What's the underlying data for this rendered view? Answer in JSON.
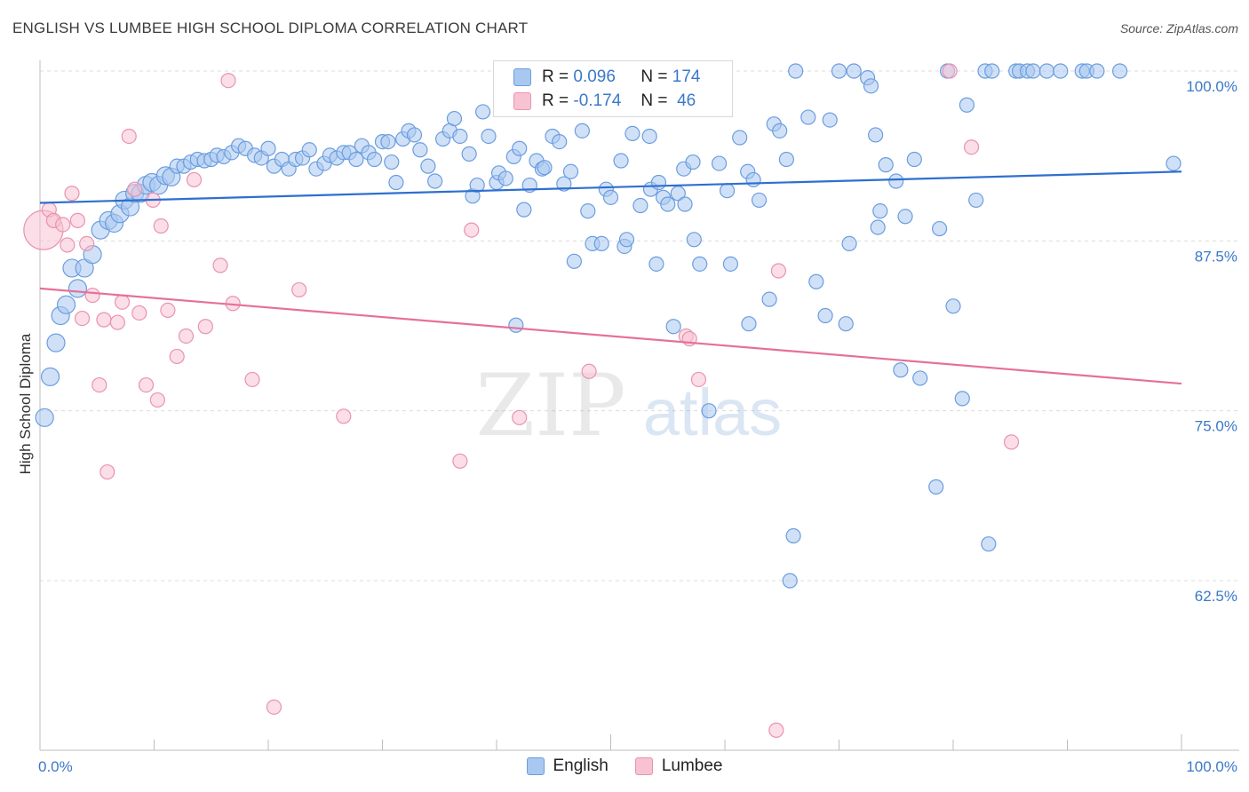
{
  "header": {
    "title": "ENGLISH VS LUMBEE HIGH SCHOOL DIPLOMA CORRELATION CHART",
    "source": "Source: ZipAtlas.com"
  },
  "legend": {
    "english": {
      "r_label": "R =",
      "r_value": "0.096",
      "n_label": "N =",
      "n_value": "174"
    },
    "lumbee": {
      "r_label": "R =",
      "r_value": "-0.174",
      "n_label": "N =",
      "n_value": "46"
    }
  },
  "bottom_legend": {
    "english": "English",
    "lumbee": "Lumbee"
  },
  "watermark": {
    "zip": "ZIP",
    "atlas": "atlas"
  },
  "colors": {
    "english_fill": "#a9c8f0",
    "english_stroke": "#6b9ddf",
    "english_line": "#2e6fcf",
    "lumbee_fill": "#f7c3d3",
    "lumbee_stroke": "#e993ad",
    "lumbee_line": "#e5709a",
    "tick_label": "#3b78c8",
    "grid": "#dcdcdc"
  },
  "chart_data": {
    "type": "scatter",
    "xlabel": "",
    "ylabel": "High School Diploma",
    "xlim": [
      0,
      100
    ],
    "ylim": [
      50,
      100
    ],
    "x_tick_labels": [
      "0.0%",
      "100.0%"
    ],
    "y_ticks": [
      100,
      87.5,
      75,
      62.5
    ],
    "y_tick_labels": [
      "100.0%",
      "87.5%",
      "75.0%",
      "62.5%"
    ],
    "grid": "horizontal dashed",
    "legend_position": "top-center",
    "series": [
      {
        "name": "English",
        "r": 0.096,
        "n": 174,
        "trend": {
          "x": [
            0,
            100
          ],
          "y": [
            90.3,
            92.6
          ]
        },
        "points": [
          [
            0.4,
            74.5
          ],
          [
            0.9,
            77.5
          ],
          [
            1.4,
            80.0
          ],
          [
            1.8,
            82.0
          ],
          [
            2.3,
            82.8
          ],
          [
            2.8,
            85.5
          ],
          [
            3.3,
            84.0
          ],
          [
            3.9,
            85.5
          ],
          [
            4.6,
            86.5
          ],
          [
            5.3,
            88.3
          ],
          [
            6.0,
            89.0
          ],
          [
            6.5,
            88.8
          ],
          [
            7.0,
            89.5
          ],
          [
            7.4,
            90.5
          ],
          [
            7.9,
            90.0
          ],
          [
            8.3,
            91.0
          ],
          [
            8.8,
            91.0
          ],
          [
            9.3,
            91.6
          ],
          [
            9.8,
            91.8
          ],
          [
            10.4,
            91.6
          ],
          [
            11.0,
            92.3
          ],
          [
            11.5,
            92.2
          ],
          [
            12.0,
            93.0
          ],
          [
            12.6,
            93.0
          ],
          [
            13.2,
            93.3
          ],
          [
            13.8,
            93.5
          ],
          [
            14.4,
            93.4
          ],
          [
            15.0,
            93.5
          ],
          [
            15.5,
            93.8
          ],
          [
            16.1,
            93.7
          ],
          [
            16.8,
            94.0
          ],
          [
            17.4,
            94.5
          ],
          [
            18.0,
            94.3
          ],
          [
            18.8,
            93.8
          ],
          [
            19.4,
            93.6
          ],
          [
            20.0,
            94.3
          ],
          [
            20.5,
            93.0
          ],
          [
            21.2,
            93.5
          ],
          [
            21.8,
            92.8
          ],
          [
            22.4,
            93.5
          ],
          [
            23.0,
            93.6
          ],
          [
            23.6,
            94.2
          ],
          [
            24.2,
            92.8
          ],
          [
            24.9,
            93.2
          ],
          [
            25.4,
            93.8
          ],
          [
            26.0,
            93.6
          ],
          [
            26.6,
            94.0
          ],
          [
            27.1,
            94.0
          ],
          [
            27.7,
            93.5
          ],
          [
            28.2,
            94.5
          ],
          [
            28.8,
            94.0
          ],
          [
            29.3,
            93.5
          ],
          [
            30.0,
            94.8
          ],
          [
            30.5,
            94.8
          ],
          [
            30.8,
            93.3
          ],
          [
            31.2,
            91.8
          ],
          [
            31.8,
            95.0
          ],
          [
            32.3,
            95.6
          ],
          [
            32.8,
            95.3
          ],
          [
            33.3,
            94.2
          ],
          [
            34.0,
            93.0
          ],
          [
            34.6,
            91.9
          ],
          [
            35.3,
            95.0
          ],
          [
            35.9,
            95.6
          ],
          [
            36.3,
            96.5
          ],
          [
            36.8,
            95.2
          ],
          [
            37.6,
            93.9
          ],
          [
            37.9,
            90.8
          ],
          [
            38.3,
            91.6
          ],
          [
            38.8,
            97.0
          ],
          [
            39.3,
            95.2
          ],
          [
            40.0,
            91.8
          ],
          [
            40.2,
            92.5
          ],
          [
            40.8,
            92.1
          ],
          [
            41.5,
            93.7
          ],
          [
            42.0,
            94.3
          ],
          [
            41.7,
            81.3
          ],
          [
            42.4,
            89.8
          ],
          [
            42.9,
            91.6
          ],
          [
            43.5,
            93.4
          ],
          [
            44.0,
            92.8
          ],
          [
            44.2,
            92.9
          ],
          [
            44.9,
            95.2
          ],
          [
            45.5,
            94.8
          ],
          [
            45.9,
            91.7
          ],
          [
            46.5,
            92.6
          ],
          [
            46.8,
            86.0
          ],
          [
            47.5,
            95.6
          ],
          [
            48.0,
            89.7
          ],
          [
            48.4,
            87.3
          ],
          [
            49.2,
            87.3
          ],
          [
            49.6,
            91.3
          ],
          [
            50.0,
            90.7
          ],
          [
            50.9,
            93.4
          ],
          [
            51.2,
            87.1
          ],
          [
            51.4,
            87.6
          ],
          [
            51.9,
            95.4
          ],
          [
            52.6,
            90.1
          ],
          [
            53.4,
            95.2
          ],
          [
            53.5,
            91.3
          ],
          [
            54.2,
            91.8
          ],
          [
            54.6,
            90.7
          ],
          [
            54.0,
            85.8
          ],
          [
            55.0,
            90.2
          ],
          [
            55.5,
            81.2
          ],
          [
            55.9,
            91.0
          ],
          [
            56.4,
            92.8
          ],
          [
            56.5,
            90.2
          ],
          [
            57.2,
            93.3
          ],
          [
            57.3,
            87.6
          ],
          [
            57.8,
            85.8
          ],
          [
            58.6,
            75.0
          ],
          [
            59.5,
            93.2
          ],
          [
            60.2,
            91.2
          ],
          [
            60.5,
            85.8
          ],
          [
            61.3,
            95.1
          ],
          [
            62.0,
            92.6
          ],
          [
            62.5,
            92.0
          ],
          [
            62.1,
            81.4
          ],
          [
            63.0,
            90.5
          ],
          [
            63.9,
            83.2
          ],
          [
            64.3,
            96.1
          ],
          [
            64.8,
            95.6
          ],
          [
            65.4,
            93.5
          ],
          [
            66.2,
            100.0
          ],
          [
            66.0,
            65.8
          ],
          [
            65.7,
            62.5
          ],
          [
            67.3,
            96.6
          ],
          [
            68.0,
            84.5
          ],
          [
            68.8,
            82.0
          ],
          [
            69.2,
            96.4
          ],
          [
            70.0,
            100.0
          ],
          [
            70.6,
            81.4
          ],
          [
            70.9,
            87.3
          ],
          [
            71.3,
            100.0
          ],
          [
            72.5,
            99.5
          ],
          [
            72.8,
            98.9
          ],
          [
            73.2,
            95.3
          ],
          [
            73.6,
            89.7
          ],
          [
            73.4,
            88.5
          ],
          [
            74.1,
            93.1
          ],
          [
            75.0,
            91.9
          ],
          [
            75.4,
            78.0
          ],
          [
            75.8,
            89.3
          ],
          [
            76.6,
            93.5
          ],
          [
            77.1,
            77.4
          ],
          [
            78.5,
            69.4
          ],
          [
            78.8,
            88.4
          ],
          [
            79.5,
            100.0
          ],
          [
            80.0,
            82.7
          ],
          [
            80.8,
            75.9
          ],
          [
            81.2,
            97.5
          ],
          [
            82.0,
            90.5
          ],
          [
            82.8,
            100.0
          ],
          [
            83.1,
            65.2
          ],
          [
            83.4,
            100.0
          ],
          [
            85.5,
            100.0
          ],
          [
            85.8,
            100.0
          ],
          [
            86.5,
            100.0
          ],
          [
            87.0,
            100.0
          ],
          [
            88.2,
            100.0
          ],
          [
            89.4,
            100.0
          ],
          [
            91.3,
            100.0
          ],
          [
            91.7,
            100.0
          ],
          [
            92.6,
            100.0
          ],
          [
            94.6,
            100.0
          ],
          [
            99.3,
            93.2
          ]
        ]
      },
      {
        "name": "Lumbee",
        "r": -0.174,
        "n": 46,
        "trend": {
          "x": [
            0,
            100
          ],
          "y": [
            84.0,
            77.0
          ]
        },
        "points": [
          [
            0.3,
            88.3
          ],
          [
            0.8,
            89.8
          ],
          [
            1.2,
            89.0
          ],
          [
            2.0,
            88.7
          ],
          [
            2.4,
            87.2
          ],
          [
            2.8,
            91.0
          ],
          [
            3.3,
            89.0
          ],
          [
            3.7,
            81.8
          ],
          [
            4.1,
            87.3
          ],
          [
            4.6,
            83.5
          ],
          [
            5.2,
            76.9
          ],
          [
            5.6,
            81.7
          ],
          [
            5.9,
            70.5
          ],
          [
            6.8,
            81.5
          ],
          [
            7.2,
            83.0
          ],
          [
            7.8,
            95.2
          ],
          [
            8.3,
            91.3
          ],
          [
            8.7,
            82.2
          ],
          [
            9.3,
            76.9
          ],
          [
            9.9,
            90.5
          ],
          [
            10.3,
            75.8
          ],
          [
            10.6,
            88.6
          ],
          [
            11.2,
            82.4
          ],
          [
            12.0,
            79.0
          ],
          [
            12.8,
            80.5
          ],
          [
            13.5,
            92.0
          ],
          [
            14.5,
            81.2
          ],
          [
            15.8,
            85.7
          ],
          [
            16.5,
            99.3
          ],
          [
            16.9,
            82.9
          ],
          [
            18.6,
            77.3
          ],
          [
            20.5,
            53.2
          ],
          [
            22.7,
            83.9
          ],
          [
            26.6,
            74.6
          ],
          [
            36.8,
            71.3
          ],
          [
            37.8,
            88.3
          ],
          [
            42.0,
            74.5
          ],
          [
            48.1,
            77.9
          ],
          [
            56.6,
            80.5
          ],
          [
            56.9,
            80.3
          ],
          [
            57.7,
            77.3
          ],
          [
            64.5,
            51.5
          ],
          [
            64.7,
            85.3
          ],
          [
            79.7,
            100.0
          ],
          [
            81.6,
            94.4
          ],
          [
            85.1,
            72.7
          ]
        ]
      }
    ]
  }
}
